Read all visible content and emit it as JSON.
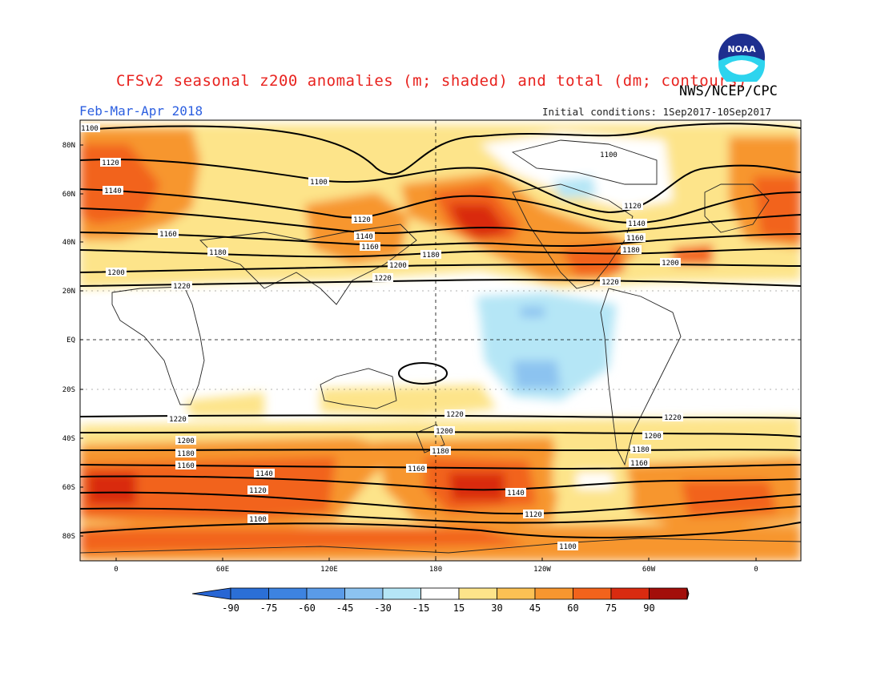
{
  "header": {
    "title": "CFSv2 seasonal z200 anomalies (m; shaded) and total (dm; contours)",
    "agency": "NWS/NCEP/CPC",
    "season": "Feb-Mar-Apr 2018",
    "initial_conditions": "Initial conditions: 1Sep2017-10Sep2017",
    "logo_text": "NOAA"
  },
  "axes": {
    "lat_labels": [
      "80N",
      "60N",
      "40N",
      "20N",
      "EQ",
      "20S",
      "40S",
      "60S",
      "80S"
    ],
    "lon_labels": [
      "0",
      "60E",
      "120E",
      "180",
      "120W",
      "60W",
      "0"
    ]
  },
  "colorbar": {
    "ticks": [
      "-90",
      "-75",
      "-60",
      "-45",
      "-30",
      "-15",
      "15",
      "30",
      "45",
      "60",
      "75",
      "90"
    ],
    "colors": [
      "#2b6fd6",
      "#3d83e0",
      "#5a9be8",
      "#8cc3f0",
      "#b5e6f6",
      "#ffffff",
      "#fde48a",
      "#fbc154",
      "#f7962f",
      "#f2631c",
      "#d92b10",
      "#a30e0a"
    ]
  },
  "contours": {
    "labels_north": [
      "1100",
      "1120",
      "1140",
      "1160",
      "1180",
      "1200",
      "1220"
    ],
    "labels_south": [
      "1220",
      "1200",
      "1180",
      "1160",
      "1140",
      "1120",
      "1100"
    ]
  }
}
